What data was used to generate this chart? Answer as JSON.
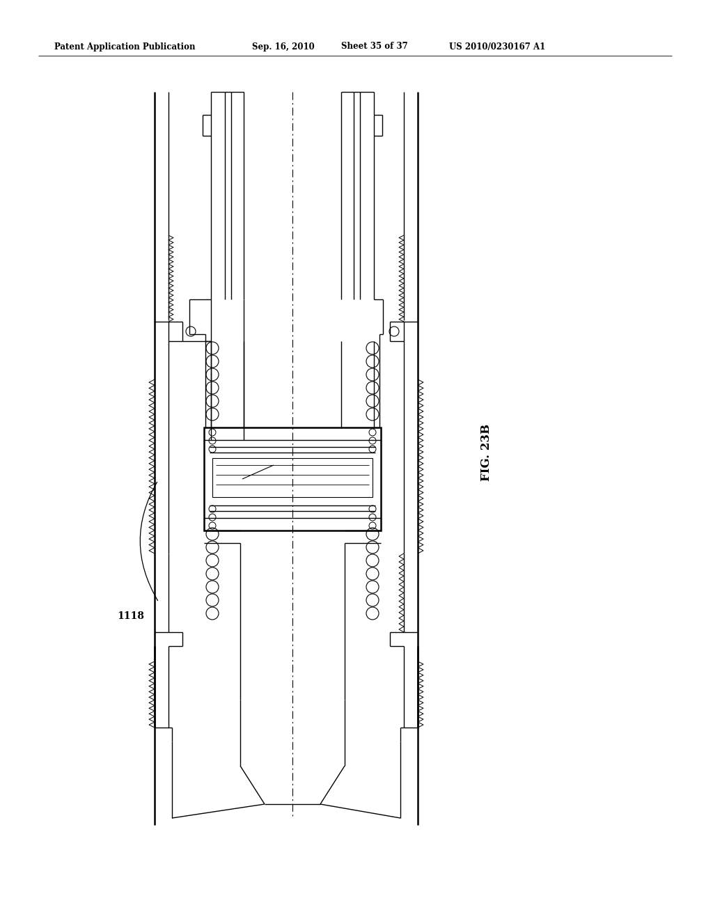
{
  "bg_color": "#ffffff",
  "header_text": "Patent Application Publication",
  "header_date": "Sep. 16, 2010",
  "header_sheet": "Sheet 35 of 37",
  "header_patent": "US 2010/0230167 A1",
  "fig_label": "FIG. 23B",
  "part_label": "1118",
  "lc": "#000000",
  "lw": 1.0,
  "tlw": 1.8
}
